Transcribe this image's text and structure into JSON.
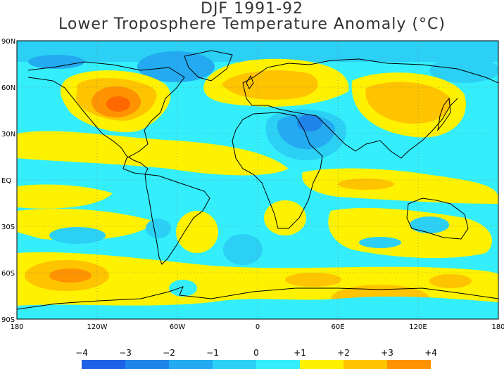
{
  "title": "DJF 1991-92",
  "subtitle": "Lower Troposphere Temperature Anomaly (°C)",
  "lat_labels": [
    "90N",
    "60N",
    "30N",
    "EQ",
    "30S",
    "60S",
    "90S"
  ],
  "lon_labels": [
    "180",
    "120W",
    "60W",
    "0",
    "60E",
    "120E",
    "180"
  ],
  "colorbar": {
    "labels": [
      "−4",
      "−3",
      "−2",
      "−1",
      "0",
      "+1",
      "+2",
      "+3",
      "+4"
    ],
    "colors": [
      "#1d62e6",
      "#1f84ea",
      "#23aaf0",
      "#2bd0f4",
      "#34eefb",
      "#fef200",
      "#ffc400",
      "#ff9200",
      "#ff6800"
    ]
  },
  "colors": {
    "c_m4": "#1d62e6",
    "c_m3": "#1f84ea",
    "c_m2": "#23aaf0",
    "c_m1": "#2bd0f4",
    "c_0": "#34eefb",
    "c_p1": "#fef200",
    "c_p2": "#ffc400",
    "c_p3": "#ff9200",
    "c_p4": "#ff6800"
  }
}
